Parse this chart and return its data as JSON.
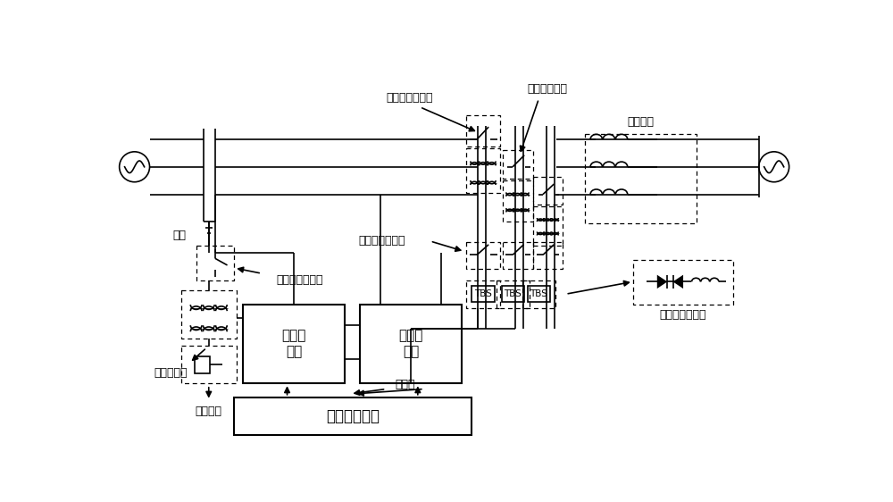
{
  "bg_color": "#ffffff",
  "lw": 1.2,
  "labels": {
    "busbar": "母线",
    "high_bypass": "高压侧旁路开关",
    "low_bypass": "低压侧旁路开关",
    "parallel_inlet": "并联侧进线开关",
    "series_transformer": "串联侧变压器",
    "controlled_line": "被控线路",
    "parallel_transformer": "并联变压器",
    "start_circuit": "启动电路",
    "parallel_converter": "并联换\n流器",
    "series_converter": "串联换\n流器",
    "converter": "换流器",
    "control_device": "控制保护装置",
    "thyristor_bypass": "晶闸管旁路开关",
    "tbs": "TBS"
  }
}
